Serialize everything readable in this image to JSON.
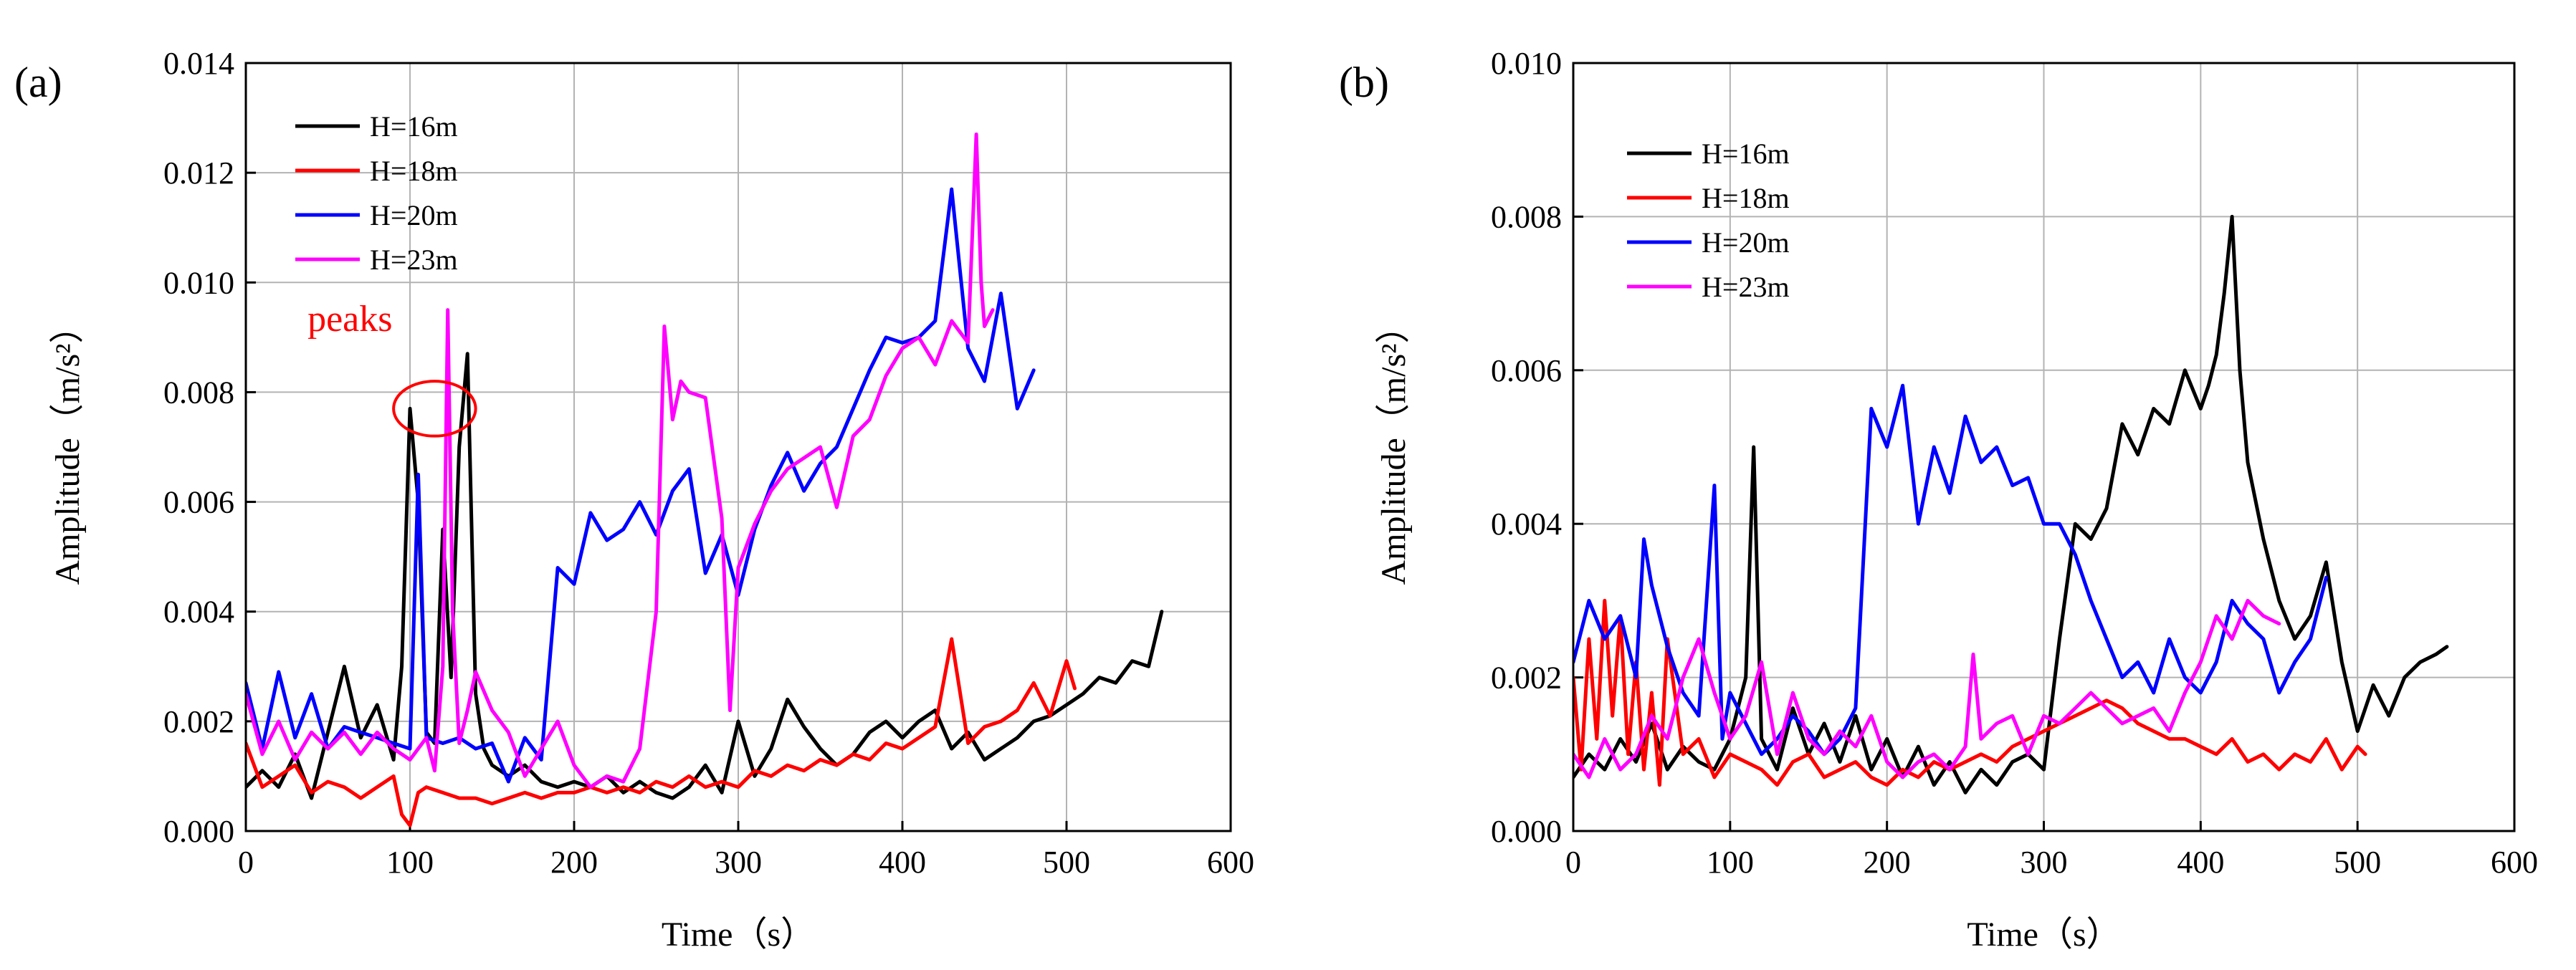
{
  "chart_data": [
    {
      "type": "line",
      "panel_label": "(a)",
      "xlabel": "Time（s）",
      "ylabel": "Amplitude（m/s²）",
      "xlim": [
        0,
        600
      ],
      "ylim": [
        0,
        0.014
      ],
      "x_ticks": [
        0,
        100,
        200,
        300,
        400,
        500,
        600
      ],
      "x_tick_labels": [
        "0",
        "100",
        "200",
        "300",
        "400",
        "500",
        "600"
      ],
      "y_ticks": [
        0,
        0.002,
        0.004,
        0.006,
        0.008,
        0.01,
        0.012,
        0.014
      ],
      "y_tick_labels": [
        "0.000",
        "0.002",
        "0.004",
        "0.006",
        "0.008",
        "0.010",
        "0.012",
        "0.014"
      ],
      "grid": true,
      "legend_position": "top-left",
      "annotation": {
        "text": "peaks",
        "color": "#ff0000",
        "ellipse_center": [
          115,
          0.0077
        ],
        "ellipse_radius": [
          25,
          0.0005
        ]
      },
      "series": [
        {
          "name": "H=16m",
          "color": "#000000",
          "x": [
            0,
            10,
            20,
            30,
            40,
            50,
            60,
            70,
            80,
            90,
            95,
            100,
            105,
            110,
            115,
            120,
            125,
            130,
            135,
            140,
            145,
            150,
            160,
            170,
            180,
            190,
            200,
            210,
            220,
            230,
            240,
            250,
            260,
            270,
            280,
            290,
            300,
            310,
            320,
            330,
            340,
            350,
            360,
            370,
            380,
            390,
            400,
            410,
            420,
            430,
            440,
            450,
            460,
            470,
            480,
            490,
            500,
            510,
            520,
            530,
            540,
            550,
            558
          ],
          "y": [
            0.0008,
            0.0011,
            0.0008,
            0.0014,
            0.0006,
            0.0018,
            0.003,
            0.0017,
            0.0023,
            0.0013,
            0.003,
            0.0077,
            0.006,
            0.0018,
            0.0016,
            0.0055,
            0.0028,
            0.007,
            0.0087,
            0.0025,
            0.0015,
            0.0012,
            0.001,
            0.0012,
            0.0009,
            0.0008,
            0.0009,
            0.0008,
            0.001,
            0.0007,
            0.0009,
            0.0007,
            0.0006,
            0.0008,
            0.0012,
            0.0007,
            0.002,
            0.001,
            0.0015,
            0.0024,
            0.0019,
            0.0015,
            0.0012,
            0.0014,
            0.0018,
            0.002,
            0.0017,
            0.002,
            0.0022,
            0.0015,
            0.0018,
            0.0013,
            0.0015,
            0.0017,
            0.002,
            0.0021,
            0.0023,
            0.0025,
            0.0028,
            0.0027,
            0.0031,
            0.003,
            0.004
          ]
        },
        {
          "name": "H=18m",
          "color": "#ff0000",
          "x": [
            0,
            10,
            20,
            30,
            40,
            50,
            60,
            70,
            80,
            90,
            95,
            100,
            105,
            110,
            120,
            130,
            140,
            150,
            160,
            170,
            180,
            190,
            200,
            210,
            220,
            230,
            240,
            250,
            260,
            270,
            280,
            290,
            300,
            310,
            320,
            330,
            340,
            350,
            360,
            370,
            380,
            390,
            400,
            410,
            420,
            430,
            440,
            450,
            460,
            470,
            480,
            490,
            500,
            505
          ],
          "y": [
            0.0016,
            0.0008,
            0.001,
            0.0012,
            0.0007,
            0.0009,
            0.0008,
            0.0006,
            0.0008,
            0.001,
            0.0003,
            0.0001,
            0.0007,
            0.0008,
            0.0007,
            0.0006,
            0.0006,
            0.0005,
            0.0006,
            0.0007,
            0.0006,
            0.0007,
            0.0007,
            0.0008,
            0.0007,
            0.0008,
            0.0007,
            0.0009,
            0.0008,
            0.001,
            0.0008,
            0.0009,
            0.0008,
            0.0011,
            0.001,
            0.0012,
            0.0011,
            0.0013,
            0.0012,
            0.0014,
            0.0013,
            0.0016,
            0.0015,
            0.0017,
            0.0019,
            0.0035,
            0.0016,
            0.0019,
            0.002,
            0.0022,
            0.0027,
            0.0021,
            0.0031,
            0.0026
          ]
        },
        {
          "name": "H=20m",
          "color": "#0000ff",
          "x": [
            0,
            10,
            20,
            30,
            40,
            50,
            60,
            70,
            80,
            90,
            100,
            105,
            110,
            120,
            130,
            140,
            150,
            160,
            170,
            180,
            190,
            200,
            210,
            220,
            230,
            240,
            250,
            260,
            270,
            280,
            290,
            300,
            310,
            320,
            330,
            340,
            350,
            360,
            370,
            380,
            390,
            400,
            410,
            420,
            430,
            440,
            450,
            460,
            470,
            480
          ],
          "y": [
            0.0027,
            0.0015,
            0.0029,
            0.0017,
            0.0025,
            0.0015,
            0.0019,
            0.0018,
            0.0017,
            0.0016,
            0.0015,
            0.0065,
            0.0017,
            0.0016,
            0.0017,
            0.0015,
            0.0016,
            0.0009,
            0.0017,
            0.0013,
            0.0048,
            0.0045,
            0.0058,
            0.0053,
            0.0055,
            0.006,
            0.0054,
            0.0062,
            0.0066,
            0.0047,
            0.0054,
            0.0043,
            0.0055,
            0.0063,
            0.0069,
            0.0062,
            0.0067,
            0.007,
            0.0077,
            0.0084,
            0.009,
            0.0089,
            0.009,
            0.0093,
            0.0117,
            0.0088,
            0.0082,
            0.0098,
            0.0077,
            0.0084
          ]
        },
        {
          "name": "H=23m",
          "color": "#ff00ff",
          "x": [
            0,
            10,
            20,
            30,
            40,
            50,
            60,
            70,
            80,
            90,
            100,
            110,
            115,
            120,
            123,
            126,
            130,
            135,
            140,
            150,
            160,
            170,
            180,
            190,
            200,
            210,
            220,
            230,
            240,
            250,
            255,
            260,
            265,
            270,
            280,
            290,
            295,
            300,
            310,
            320,
            330,
            340,
            350,
            360,
            370,
            380,
            390,
            400,
            410,
            420,
            430,
            440,
            445,
            448,
            450,
            455
          ],
          "y": [
            0.0025,
            0.0014,
            0.002,
            0.0013,
            0.0018,
            0.0015,
            0.0018,
            0.0014,
            0.0018,
            0.0015,
            0.0013,
            0.0017,
            0.0011,
            0.003,
            0.0095,
            0.004,
            0.0016,
            0.0022,
            0.0029,
            0.0022,
            0.0018,
            0.001,
            0.0015,
            0.002,
            0.0012,
            0.0008,
            0.001,
            0.0009,
            0.0015,
            0.004,
            0.0092,
            0.0075,
            0.0082,
            0.008,
            0.0079,
            0.0057,
            0.0022,
            0.0048,
            0.0056,
            0.0062,
            0.0066,
            0.0068,
            0.007,
            0.0059,
            0.0072,
            0.0075,
            0.0083,
            0.0088,
            0.009,
            0.0085,
            0.0093,
            0.0089,
            0.0127,
            0.01,
            0.0092,
            0.0095
          ]
        }
      ]
    },
    {
      "type": "line",
      "panel_label": "(b)",
      "xlabel": "Time（s）",
      "ylabel": "Amplitude（m/s²）",
      "xlim": [
        0,
        600
      ],
      "ylim": [
        0,
        0.01
      ],
      "x_ticks": [
        0,
        100,
        200,
        300,
        400,
        500,
        600
      ],
      "x_tick_labels": [
        "0",
        "100",
        "200",
        "300",
        "400",
        "500",
        "600"
      ],
      "y_ticks": [
        0,
        0.002,
        0.004,
        0.006,
        0.008,
        0.01
      ],
      "y_tick_labels": [
        "0.000",
        "0.002",
        "0.004",
        "0.006",
        "0.008",
        "0.010"
      ],
      "grid": true,
      "legend_position": "top-left",
      "series": [
        {
          "name": "H=16m",
          "color": "#000000",
          "x": [
            0,
            10,
            20,
            30,
            40,
            50,
            60,
            70,
            80,
            90,
            100,
            110,
            115,
            120,
            130,
            140,
            150,
            160,
            170,
            180,
            190,
            200,
            210,
            220,
            230,
            240,
            250,
            260,
            270,
            280,
            290,
            300,
            310,
            320,
            330,
            340,
            350,
            360,
            370,
            380,
            390,
            400,
            405,
            410,
            415,
            420,
            425,
            430,
            440,
            450,
            460,
            470,
            480,
            490,
            500,
            510,
            520,
            530,
            540,
            550,
            557
          ],
          "y": [
            0.0007,
            0.001,
            0.0008,
            0.0012,
            0.0009,
            0.0014,
            0.0008,
            0.0011,
            0.0009,
            0.0008,
            0.0012,
            0.002,
            0.005,
            0.0012,
            0.0008,
            0.0016,
            0.001,
            0.0014,
            0.0009,
            0.0015,
            0.0008,
            0.0012,
            0.0007,
            0.0011,
            0.0006,
            0.0009,
            0.0005,
            0.0008,
            0.0006,
            0.0009,
            0.001,
            0.0008,
            0.0025,
            0.004,
            0.0038,
            0.0042,
            0.0053,
            0.0049,
            0.0055,
            0.0053,
            0.006,
            0.0055,
            0.0058,
            0.0062,
            0.007,
            0.008,
            0.006,
            0.0048,
            0.0038,
            0.003,
            0.0025,
            0.0028,
            0.0035,
            0.0022,
            0.0013,
            0.0019,
            0.0015,
            0.002,
            0.0022,
            0.0023,
            0.0024
          ]
        },
        {
          "name": "H=18m",
          "color": "#ff0000",
          "x": [
            0,
            5,
            10,
            15,
            20,
            25,
            30,
            35,
            40,
            45,
            50,
            55,
            60,
            70,
            80,
            90,
            100,
            110,
            120,
            130,
            140,
            150,
            160,
            170,
            180,
            190,
            200,
            210,
            220,
            230,
            240,
            250,
            260,
            270,
            280,
            290,
            300,
            310,
            320,
            330,
            340,
            350,
            360,
            370,
            380,
            390,
            400,
            410,
            420,
            430,
            440,
            450,
            460,
            470,
            480,
            490,
            500,
            505
          ],
          "y": [
            0.002,
            0.0008,
            0.0025,
            0.0012,
            0.003,
            0.0015,
            0.0028,
            0.001,
            0.0022,
            0.0008,
            0.0018,
            0.0006,
            0.0025,
            0.001,
            0.0012,
            0.0007,
            0.001,
            0.0009,
            0.0008,
            0.0006,
            0.0009,
            0.001,
            0.0007,
            0.0008,
            0.0009,
            0.0007,
            0.0006,
            0.0008,
            0.0007,
            0.0009,
            0.0008,
            0.0009,
            0.001,
            0.0009,
            0.0011,
            0.0012,
            0.0013,
            0.0014,
            0.0015,
            0.0016,
            0.0017,
            0.0016,
            0.0014,
            0.0013,
            0.0012,
            0.0012,
            0.0011,
            0.001,
            0.0012,
            0.0009,
            0.001,
            0.0008,
            0.001,
            0.0009,
            0.0012,
            0.0008,
            0.0011,
            0.001
          ]
        },
        {
          "name": "H=20m",
          "color": "#0000ff",
          "x": [
            0,
            10,
            20,
            30,
            40,
            45,
            50,
            60,
            70,
            80,
            90,
            95,
            100,
            110,
            120,
            130,
            140,
            150,
            160,
            170,
            180,
            190,
            200,
            210,
            220,
            230,
            240,
            250,
            260,
            270,
            280,
            290,
            300,
            310,
            320,
            330,
            340,
            350,
            360,
            370,
            380,
            390,
            400,
            410,
            420,
            430,
            440,
            450,
            460,
            470,
            480
          ],
          "y": [
            0.0022,
            0.003,
            0.0025,
            0.0028,
            0.002,
            0.0038,
            0.0032,
            0.0024,
            0.0018,
            0.0015,
            0.0045,
            0.0012,
            0.0018,
            0.0014,
            0.001,
            0.0012,
            0.0015,
            0.0013,
            0.001,
            0.0012,
            0.0016,
            0.0055,
            0.005,
            0.0058,
            0.004,
            0.005,
            0.0044,
            0.0054,
            0.0048,
            0.005,
            0.0045,
            0.0046,
            0.004,
            0.004,
            0.0036,
            0.003,
            0.0025,
            0.002,
            0.0022,
            0.0018,
            0.0025,
            0.002,
            0.0018,
            0.0022,
            0.003,
            0.0027,
            0.0025,
            0.0018,
            0.0022,
            0.0025,
            0.0033
          ]
        },
        {
          "name": "H=23m",
          "color": "#ff00ff",
          "x": [
            0,
            10,
            20,
            30,
            40,
            50,
            60,
            70,
            80,
            90,
            100,
            110,
            120,
            130,
            140,
            150,
            160,
            170,
            180,
            190,
            200,
            210,
            220,
            230,
            240,
            250,
            255,
            260,
            270,
            280,
            290,
            300,
            310,
            320,
            330,
            340,
            350,
            360,
            370,
            380,
            390,
            400,
            410,
            420,
            430,
            440,
            450
          ],
          "y": [
            0.001,
            0.0007,
            0.0012,
            0.0008,
            0.001,
            0.0015,
            0.0012,
            0.002,
            0.0025,
            0.0018,
            0.0012,
            0.0015,
            0.0022,
            0.001,
            0.0018,
            0.0012,
            0.001,
            0.0013,
            0.0011,
            0.0015,
            0.0009,
            0.0007,
            0.0009,
            0.001,
            0.0008,
            0.0011,
            0.0023,
            0.0012,
            0.0014,
            0.0015,
            0.001,
            0.0015,
            0.0014,
            0.0016,
            0.0018,
            0.0016,
            0.0014,
            0.0015,
            0.0016,
            0.0013,
            0.0018,
            0.0022,
            0.0028,
            0.0025,
            0.003,
            0.0028,
            0.0027
          ]
        }
      ]
    }
  ]
}
